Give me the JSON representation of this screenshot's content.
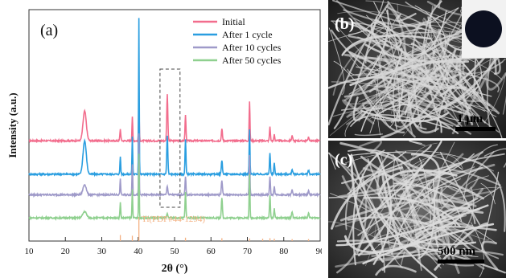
{
  "chart_data": {
    "type": "line",
    "panel_label": "(a)",
    "xlabel": "2θ (°)",
    "ylabel": "Intensity (a.u.)",
    "xlim": [
      10,
      90
    ],
    "xticks": [
      10,
      20,
      30,
      40,
      50,
      60,
      70,
      80,
      90
    ],
    "grid": false,
    "legend_position": "top-right",
    "series": [
      {
        "name": "Initial",
        "color": "#f26d8d",
        "offset": 0.78,
        "peaks": [
          [
            25.3,
            0.23,
            0.9
          ],
          [
            35.1,
            0.09,
            0.25
          ],
          [
            38.4,
            0.19,
            0.2
          ],
          [
            40.2,
            0.3,
            0.2
          ],
          [
            48.0,
            0.36,
            0.3
          ],
          [
            53.0,
            0.2,
            0.25
          ],
          [
            63.0,
            0.09,
            0.3
          ],
          [
            70.6,
            0.31,
            0.22
          ],
          [
            76.2,
            0.11,
            0.25
          ],
          [
            77.4,
            0.05,
            0.25
          ],
          [
            82.3,
            0.04,
            0.3
          ],
          [
            86.8,
            0.03,
            0.3
          ]
        ]
      },
      {
        "name": "After 1 cycle",
        "color": "#2a9ee0",
        "offset": 0.52,
        "peaks": [
          [
            25.3,
            0.26,
            0.9
          ],
          [
            35.1,
            0.14,
            0.22
          ],
          [
            38.4,
            0.29,
            0.2
          ],
          [
            40.2,
            1.22,
            0.18
          ],
          [
            48.0,
            0.3,
            0.3
          ],
          [
            53.0,
            0.27,
            0.25
          ],
          [
            63.0,
            0.11,
            0.3
          ],
          [
            70.6,
            0.35,
            0.22
          ],
          [
            76.2,
            0.17,
            0.25
          ],
          [
            77.4,
            0.09,
            0.25
          ],
          [
            82.3,
            0.04,
            0.3
          ],
          [
            86.8,
            0.03,
            0.3
          ]
        ]
      },
      {
        "name": "After 10 cycles",
        "color": "#9f9ac9",
        "offset": 0.36,
        "peaks": [
          [
            25.3,
            0.08,
            0.9
          ],
          [
            35.1,
            0.12,
            0.22
          ],
          [
            38.4,
            0.24,
            0.2
          ],
          [
            40.2,
            0.48,
            0.18
          ],
          [
            48.0,
            0.07,
            0.3
          ],
          [
            53.0,
            0.14,
            0.25
          ],
          [
            63.0,
            0.11,
            0.3
          ],
          [
            70.6,
            0.31,
            0.22
          ],
          [
            76.2,
            0.14,
            0.25
          ],
          [
            77.4,
            0.07,
            0.25
          ],
          [
            82.3,
            0.04,
            0.3
          ],
          [
            86.8,
            0.03,
            0.3
          ]
        ]
      },
      {
        "name": "After 50 cycles",
        "color": "#8fd08f",
        "offset": 0.18,
        "peaks": [
          [
            25.3,
            0.05,
            1.0
          ],
          [
            35.1,
            0.12,
            0.22
          ],
          [
            38.4,
            0.22,
            0.2
          ],
          [
            40.2,
            0.5,
            0.18
          ],
          [
            48.0,
            0.03,
            0.3
          ],
          [
            53.0,
            0.2,
            0.25
          ],
          [
            63.0,
            0.15,
            0.3
          ],
          [
            70.6,
            0.34,
            0.22
          ],
          [
            76.2,
            0.18,
            0.25
          ],
          [
            77.4,
            0.07,
            0.25
          ],
          [
            82.3,
            0.05,
            0.3
          ],
          [
            86.8,
            0.04,
            0.3
          ]
        ]
      }
    ],
    "reference": {
      "label": "Ti(PDF#44-1294)",
      "color": "#f4b183",
      "lines": [
        [
          35.1,
          0.25
        ],
        [
          38.4,
          0.22
        ],
        [
          40.2,
          1.0
        ],
        [
          53.0,
          0.14
        ],
        [
          63.0,
          0.12
        ],
        [
          70.6,
          0.11
        ],
        [
          74.2,
          0.1
        ],
        [
          76.2,
          0.12
        ],
        [
          77.4,
          0.1
        ],
        [
          82.3,
          0.08
        ],
        [
          86.8,
          0.08
        ]
      ]
    },
    "highlight_box": {
      "x": [
        46,
        51.5
      ],
      "style": "dashed"
    }
  },
  "sem_panels": [
    {
      "label": "(b)",
      "scale_bar": "1 μm",
      "inset": "sample photo"
    },
    {
      "label": "(c)",
      "scale_bar": "500 nm"
    }
  ]
}
